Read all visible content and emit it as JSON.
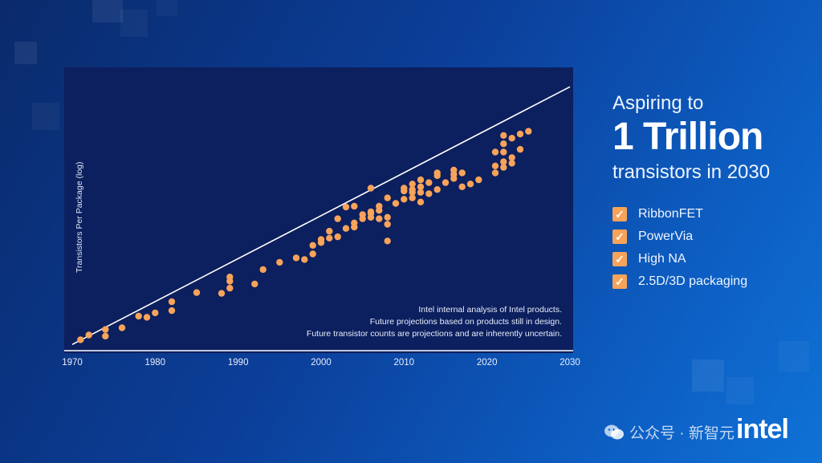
{
  "header": {
    "aspire": "Aspiring to",
    "headline": "1 Trillion",
    "subline": "transistors in 2030"
  },
  "features": [
    {
      "label": "RibbonFET"
    },
    {
      "label": "PowerVia"
    },
    {
      "label": "High NA"
    },
    {
      "label": "2.5D/3D packaging"
    }
  ],
  "notes": [
    "Intel internal analysis of Intel products.",
    "Future projections based on products still in design.",
    "Future transistor counts are projections and are inherently uncertain."
  ],
  "watermark": "公众号 · 新智元",
  "logo": "intel",
  "colors": {
    "point": "#f7a35a",
    "trend": "#ffffff",
    "panel": "#0c1f5e"
  },
  "chart_data": {
    "type": "scatter",
    "xlabel": "",
    "ylabel": "Transistors Per Package (log)",
    "xlim": [
      1970,
      2030
    ],
    "ylim": [
      0,
      10
    ],
    "xticks": [
      1970,
      1980,
      1990,
      2000,
      2010,
      2020,
      2030
    ],
    "yscale": "log",
    "grid": false,
    "trendline": [
      [
        1970,
        0.02
      ],
      [
        2030,
        9.3
      ]
    ],
    "x": [
      1971,
      1972,
      1974,
      1974,
      1976,
      1978,
      1979,
      1980,
      1982,
      1982,
      1985,
      1988,
      1989,
      1989,
      1989,
      1992,
      1993,
      1995,
      1997,
      1998,
      1999,
      1999,
      2000,
      2000,
      2001,
      2001,
      2002,
      2002,
      2003,
      2003,
      2004,
      2004,
      2004,
      2005,
      2005,
      2006,
      2006,
      2006,
      2006,
      2007,
      2007,
      2007,
      2008,
      2008,
      2008,
      2008,
      2009,
      2010,
      2010,
      2010,
      2011,
      2011,
      2011,
      2011,
      2012,
      2012,
      2012,
      2012,
      2013,
      2013,
      2014,
      2014,
      2014,
      2015,
      2016,
      2016,
      2016,
      2017,
      2017,
      2018,
      2019,
      2021,
      2021,
      2021,
      2022,
      2022,
      2022,
      2022,
      2022,
      2023,
      2023,
      2023,
      2024,
      2024,
      2025
    ],
    "y": [
      0.19,
      0.36,
      0.56,
      0.32,
      0.62,
      1.04,
      1.0,
      1.16,
      1.24,
      1.56,
      1.89,
      1.86,
      2.05,
      2.3,
      2.45,
      2.2,
      2.72,
      2.98,
      3.14,
      3.08,
      3.28,
      3.59,
      3.69,
      3.8,
      3.85,
      4.1,
      3.9,
      4.55,
      4.97,
      4.2,
      4.4,
      5.0,
      4.25,
      4.55,
      4.7,
      4.6,
      4.75,
      4.8,
      5.65,
      4.85,
      4.55,
      5.0,
      4.6,
      5.3,
      4.35,
      3.75,
      5.1,
      5.25,
      5.65,
      5.55,
      5.8,
      5.3,
      5.5,
      5.6,
      5.5,
      5.95,
      5.7,
      5.15,
      5.45,
      5.85,
      5.6,
      6.1,
      6.2,
      5.85,
      6.0,
      6.15,
      6.3,
      5.7,
      6.2,
      5.8,
      5.95,
      6.95,
      6.45,
      6.2,
      7.55,
      7.25,
      6.95,
      6.6,
      6.4,
      7.45,
      6.75,
      6.55,
      7.6,
      7.05,
      7.7
    ]
  }
}
